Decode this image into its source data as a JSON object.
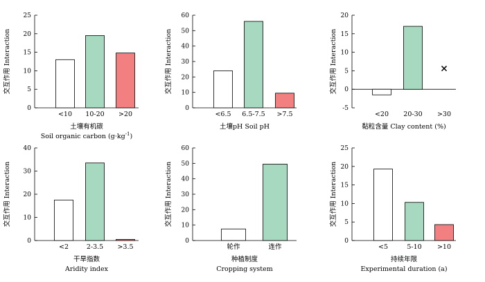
{
  "colors": {
    "white": "#ffffff",
    "green": "#a6d9c0",
    "red": "#f28080",
    "axis": "#000000"
  },
  "chart_data": [
    {
      "type": "bar",
      "ylabel": "交互作用 Interaction",
      "xlabel_cn": "土壤有机碳",
      "xlabel_en": "Soil organic carbon (g·kg",
      "xlabel_sup": "-1",
      "xlabel_tail": ")",
      "categories": [
        "<10",
        "10-20",
        ">20"
      ],
      "values": [
        13,
        19.5,
        14.8
      ],
      "colors": [
        "white",
        "green",
        "red"
      ],
      "ylim": [
        0,
        25
      ],
      "yticks": [
        0,
        5,
        10,
        15,
        20,
        25
      ],
      "markers": []
    },
    {
      "type": "bar",
      "ylabel": "交互作用 Interaction",
      "xlabel_cn": "土壤pH Soil pH",
      "xlabel_en": "",
      "categories": [
        "<6.5",
        "6.5-7.5",
        ">7.5"
      ],
      "values": [
        24,
        56,
        9.5
      ],
      "colors": [
        "white",
        "green",
        "red"
      ],
      "ylim": [
        0,
        60
      ],
      "yticks": [
        0,
        10,
        20,
        30,
        40,
        50,
        60
      ],
      "markers": []
    },
    {
      "type": "bar",
      "ylabel": "交互作用 Interaction",
      "xlabel_cn": "黏粒含量 Clay content (%)",
      "xlabel_en": "",
      "categories": [
        "<20",
        "20-30",
        ">30"
      ],
      "values": [
        -1.5,
        17,
        null
      ],
      "colors": [
        "white",
        "green",
        "red"
      ],
      "ylim": [
        -5,
        20
      ],
      "yticks": [
        -5,
        0,
        5,
        10,
        15,
        20
      ],
      "markers": [
        {
          "category": 2,
          "y": 5.7,
          "symbol": "×"
        }
      ]
    },
    {
      "type": "bar",
      "ylabel": "交互作用 Interaction",
      "xlabel_cn": "干旱指数",
      "xlabel_en": "Aridity index",
      "categories": [
        "<2",
        "2-3.5",
        ">3.5"
      ],
      "values": [
        17.5,
        33.5,
        0.5
      ],
      "colors": [
        "white",
        "green",
        "red"
      ],
      "ylim": [
        0,
        40
      ],
      "yticks": [
        0,
        10,
        20,
        30,
        40
      ],
      "markers": []
    },
    {
      "type": "bar",
      "ylabel": "交互作用 Interaction",
      "xlabel_cn": "种植制度",
      "xlabel_en": "Cropping system",
      "categories": [
        "轮作",
        "连作"
      ],
      "values": [
        7.5,
        49.5
      ],
      "colors": [
        "white",
        "green"
      ],
      "ylim": [
        0,
        60
      ],
      "yticks": [
        0,
        10,
        20,
        30,
        40,
        50,
        60
      ],
      "markers": []
    },
    {
      "type": "bar",
      "ylabel": "交互作用 Interaction",
      "xlabel_cn": "持续年限",
      "xlabel_en": "Experimental duration (a)",
      "categories": [
        "<5",
        "5-10",
        ">10"
      ],
      "values": [
        19.3,
        10.3,
        4.3
      ],
      "colors": [
        "white",
        "green",
        "red"
      ],
      "ylim": [
        0,
        25
      ],
      "yticks": [
        0,
        5,
        10,
        15,
        20,
        25
      ],
      "markers": []
    }
  ]
}
